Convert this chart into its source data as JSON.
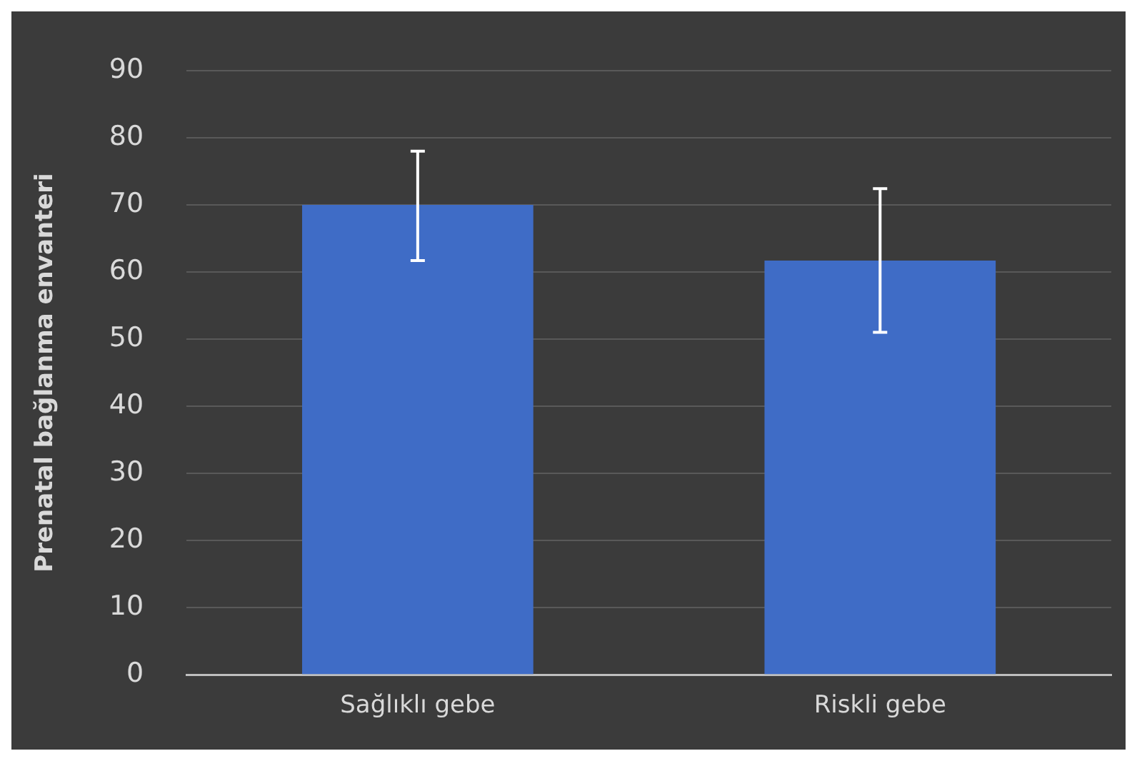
{
  "chart_data": {
    "type": "bar",
    "ylabel": "Prenatal bağlanma envanteri",
    "categories": [
      "Sağlıklı gebe",
      "Riskli gebe"
    ],
    "values": [
      70,
      61.7
    ],
    "errors": [
      [
        61.7,
        78
      ],
      [
        51,
        72.4
      ]
    ],
    "color": "#3f6cc6",
    "ylim": [
      0,
      90
    ],
    "yticks": [
      0,
      10,
      20,
      30,
      40,
      50,
      60,
      70,
      80,
      90
    ],
    "grid": "y"
  }
}
